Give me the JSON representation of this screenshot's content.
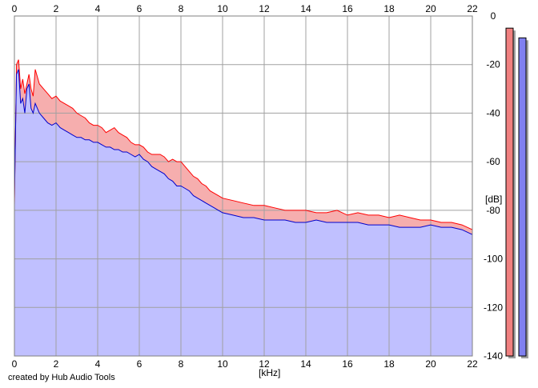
{
  "credit": "created by Hub Audio Tools",
  "chart_data": {
    "type": "area",
    "xlabel": "[kHz]",
    "ylabel": "[dB]",
    "xlim": [
      0,
      22
    ],
    "ylim": [
      -140,
      0
    ],
    "x_ticks": [
      "0",
      "2",
      "4",
      "6",
      "8",
      "10",
      "12",
      "14",
      "16",
      "18",
      "20",
      "22"
    ],
    "y_ticks": [
      "0",
      "-20",
      "-40",
      "-60",
      "-80",
      "-100",
      "-120",
      "-140"
    ],
    "grid": true,
    "series": [
      {
        "color": "#ff0000",
        "fill": "#f4a0a0",
        "values_x": [
          0,
          0.1,
          0.2,
          0.3,
          0.4,
          0.5,
          0.6,
          0.7,
          0.8,
          0.9,
          1,
          1.2,
          1.4,
          1.6,
          1.8,
          2,
          2.2,
          2.4,
          2.6,
          2.8,
          3,
          3.2,
          3.4,
          3.6,
          3.8,
          4,
          4.2,
          4.4,
          4.6,
          4.8,
          5,
          5.2,
          5.4,
          5.6,
          5.8,
          6,
          6.2,
          6.4,
          6.6,
          6.8,
          7,
          7.2,
          7.4,
          7.6,
          7.8,
          8,
          8.2,
          8.4,
          8.6,
          8.8,
          9,
          9.2,
          9.4,
          9.6,
          9.8,
          10,
          10.5,
          11,
          11.5,
          12,
          12.5,
          13,
          13.5,
          14,
          14.5,
          15,
          15.5,
          16,
          16.5,
          17,
          17.5,
          18,
          18.5,
          19,
          19.5,
          20,
          20.5,
          21,
          21.5,
          22
        ],
        "values_y": [
          -78,
          -20,
          -18,
          -30,
          -26,
          -32,
          -28,
          -24,
          -30,
          -33,
          -22,
          -28,
          -30,
          -32,
          -34,
          -33,
          -35,
          -36,
          -37,
          -38,
          -40,
          -41,
          -42,
          -44,
          -45,
          -45,
          -46,
          -48,
          -47,
          -46,
          -48,
          -49,
          -50,
          -52,
          -53,
          -53,
          -54,
          -56,
          -57,
          -57,
          -57,
          -58,
          -60,
          -59,
          -60,
          -60,
          -62,
          -64,
          -66,
          -67,
          -69,
          -70,
          -72,
          -73,
          -74,
          -75,
          -76,
          -77,
          -78,
          -78,
          -79,
          -80,
          -80,
          -80,
          -81,
          -81,
          -80,
          -82,
          -81,
          -82,
          -82,
          -83,
          -82,
          -83,
          -84,
          -84,
          -85,
          -85,
          -86,
          -88
        ]
      },
      {
        "color": "#0000cc",
        "fill": "#c0c0ff",
        "values_x": [
          0,
          0.1,
          0.2,
          0.3,
          0.4,
          0.5,
          0.6,
          0.7,
          0.8,
          0.9,
          1,
          1.2,
          1.4,
          1.6,
          1.8,
          2,
          2.2,
          2.4,
          2.6,
          2.8,
          3,
          3.2,
          3.4,
          3.6,
          3.8,
          4,
          4.2,
          4.4,
          4.6,
          4.8,
          5,
          5.2,
          5.4,
          5.6,
          5.8,
          6,
          6.2,
          6.4,
          6.6,
          6.8,
          7,
          7.2,
          7.4,
          7.6,
          7.8,
          8,
          8.2,
          8.4,
          8.6,
          8.8,
          9,
          9.2,
          9.4,
          9.6,
          9.8,
          10,
          10.5,
          11,
          11.5,
          12,
          12.5,
          13,
          13.5,
          14,
          14.5,
          15,
          15.5,
          16,
          16.5,
          17,
          17.5,
          18,
          18.5,
          19,
          19.5,
          20,
          20.5,
          21,
          21.5,
          22
        ],
        "values_y": [
          -75,
          -24,
          -22,
          -36,
          -34,
          -40,
          -30,
          -28,
          -38,
          -40,
          -36,
          -40,
          -42,
          -44,
          -45,
          -44,
          -46,
          -47,
          -48,
          -49,
          -50,
          -50,
          -51,
          -51,
          -52,
          -52,
          -53,
          -54,
          -54,
          -55,
          -55,
          -56,
          -56,
          -57,
          -58,
          -57,
          -59,
          -60,
          -62,
          -63,
          -64,
          -65,
          -67,
          -68,
          -70,
          -70,
          -71,
          -72,
          -74,
          -75,
          -76,
          -77,
          -78,
          -79,
          -80,
          -81,
          -82,
          -83,
          -83,
          -84,
          -84,
          -84,
          -85,
          -85,
          -84,
          -85,
          -85,
          -85,
          -85,
          -86,
          -86,
          -86,
          -87,
          -87,
          -87,
          -86,
          -87,
          -87,
          -88,
          -90
        ]
      }
    ],
    "meters": [
      {
        "color": "#f08080",
        "value_db": -5
      },
      {
        "color": "#8080f0",
        "value_db": -9
      }
    ]
  }
}
